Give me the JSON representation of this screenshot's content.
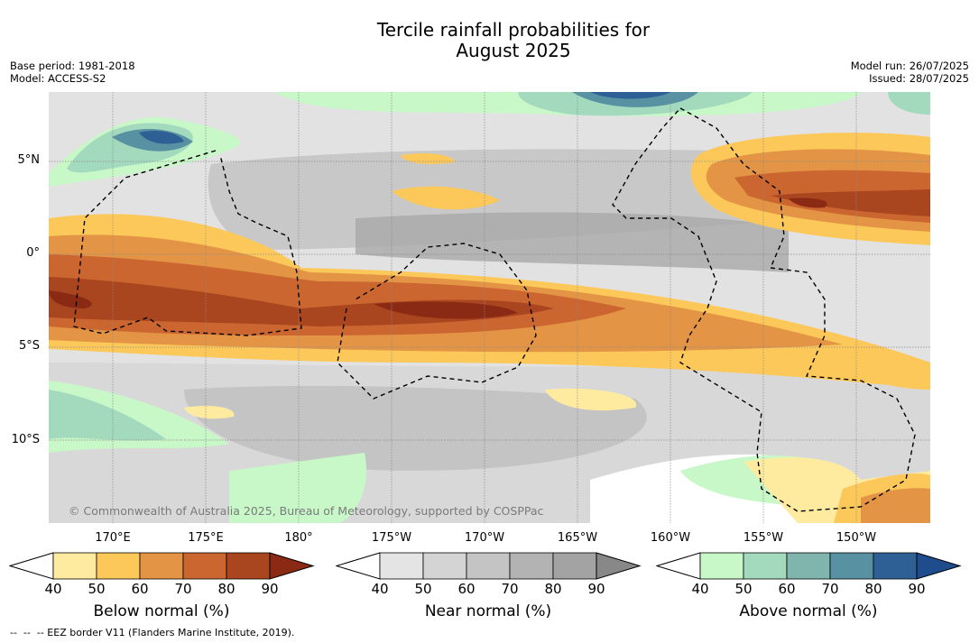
{
  "title_line1": "Tercile rainfall probabilities for",
  "title_line2": "August 2025",
  "meta_left": {
    "base_period": "Base period: 1981-2018",
    "model": "Model: ACCESS-S2"
  },
  "meta_right": {
    "model_run": "Model run: 26/07/2025",
    "issued": "Issued: 28/07/2025"
  },
  "lat_labels": [
    "5°N",
    "0°",
    "5°S",
    "10°S"
  ],
  "lon_labels": [
    "170°E",
    "175°E",
    "180°",
    "175°W",
    "170°W",
    "165°W",
    "160°W",
    "155°W",
    "150°W"
  ],
  "copyright": "© Commonwealth of Australia 2025, Bureau of Meteorology, supported by COSPPac",
  "colorbars": [
    {
      "label": "Below normal (%)",
      "ticks": [
        "40",
        "50",
        "60",
        "70",
        "80",
        "90"
      ],
      "colors": [
        "#ffffff",
        "#feeba0",
        "#fdc85a",
        "#e39545",
        "#cc6631",
        "#a9451f",
        "#8b2a14"
      ]
    },
    {
      "label": "Near normal (%)",
      "ticks": [
        "40",
        "50",
        "60",
        "70",
        "80",
        "90"
      ],
      "colors": [
        "#ffffff",
        "#e4e4e4",
        "#d4d4d4",
        "#c4c4c4",
        "#b3b3b3",
        "#a3a3a3",
        "#888888"
      ]
    },
    {
      "label": "Above normal (%)",
      "ticks": [
        "40",
        "50",
        "60",
        "70",
        "80",
        "90"
      ],
      "colors": [
        "#ffffff",
        "#c8f7c8",
        "#a3d9bd",
        "#80b5ad",
        "#5892a2",
        "#2e6096",
        "#1f4c8c"
      ]
    }
  ],
  "footnote": "--  --  -- EEZ border V11 (Flanders Marine Institute, 2019)."
}
